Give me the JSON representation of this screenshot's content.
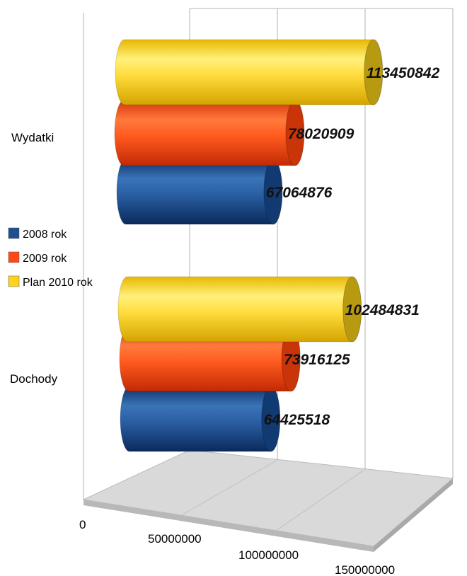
{
  "chart_data": {
    "type": "bar",
    "orientation": "horizontal",
    "style": "3d-cylinder",
    "categories": [
      "Wydatki",
      "Dochody"
    ],
    "series": [
      {
        "name": "2008 rok",
        "color": "#1f4f8f",
        "values": [
          67064876,
          64425518
        ]
      },
      {
        "name": "2009 rok",
        "color": "#ff4a14",
        "values": [
          78020909,
          73916125
        ]
      },
      {
        "name": "Plan 2010 rok",
        "color": "#ffd21e",
        "values": [
          113450842,
          102484831
        ]
      }
    ],
    "data_labels": {
      "Wydatki": [
        "67064876",
        "78020909",
        "113450842"
      ],
      "Dochody": [
        "64425518",
        "73916125",
        "102484831"
      ]
    },
    "xticks": [
      "0",
      "50000000",
      "100000000",
      "150000000"
    ],
    "xlim": [
      0,
      150000000
    ],
    "title": "",
    "xlabel": "",
    "ylabel": "",
    "legend": "left",
    "grid": true
  }
}
